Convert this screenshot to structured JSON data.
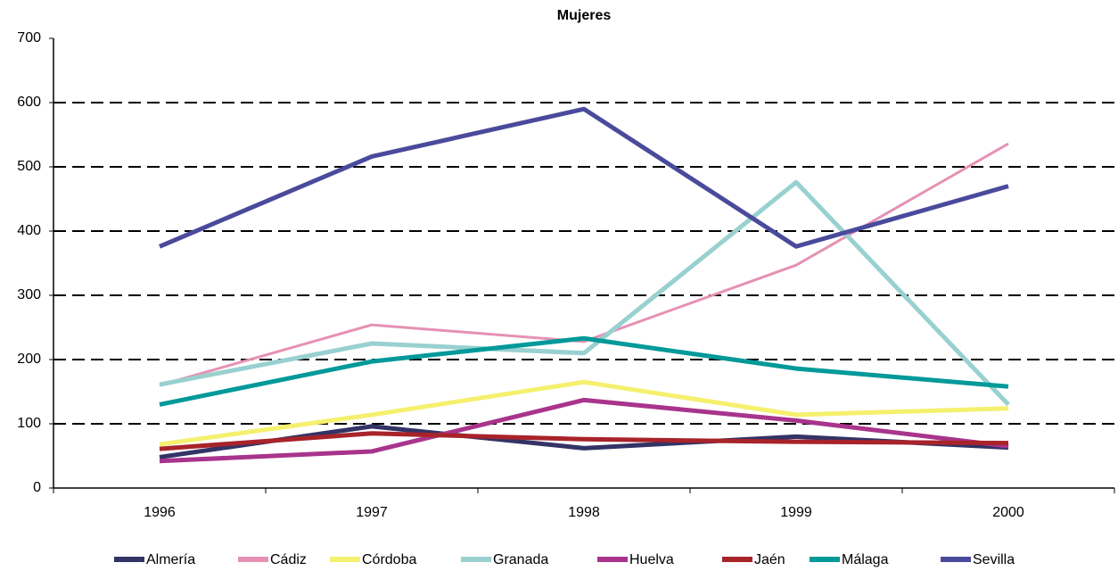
{
  "chart_data": {
    "type": "line",
    "title": "Mujeres",
    "categories": [
      "1996",
      "1997",
      "1998",
      "1999",
      "2000"
    ],
    "series": [
      {
        "name": "Almería",
        "color": "#333366",
        "values": [
          48,
          96,
          62,
          80,
          63
        ]
      },
      {
        "name": "Cádiz",
        "color": "#e691b4",
        "values": [
          160,
          254,
          228,
          347,
          536
        ]
      },
      {
        "name": "Córdoba",
        "color": "#f5f06e",
        "values": [
          68,
          114,
          165,
          114,
          124
        ]
      },
      {
        "name": "Granada",
        "color": "#99d0d0",
        "values": [
          161,
          225,
          210,
          476,
          130
        ]
      },
      {
        "name": "Huelva",
        "color": "#a8348c",
        "values": [
          42,
          57,
          137,
          105,
          65
        ]
      },
      {
        "name": "Jaén",
        "color": "#a8232a",
        "values": [
          61,
          85,
          76,
          72,
          70
        ]
      },
      {
        "name": "Málaga",
        "color": "#009999",
        "values": [
          130,
          197,
          233,
          186,
          158
        ]
      },
      {
        "name": "Sevilla",
        "color": "#4a4a9c",
        "values": [
          376,
          516,
          590,
          376,
          470
        ]
      }
    ],
    "ylim": [
      0,
      700
    ],
    "yticks": [
      0,
      100,
      200,
      300,
      400,
      500,
      600,
      700
    ],
    "grid": true,
    "legend": "bottom"
  }
}
